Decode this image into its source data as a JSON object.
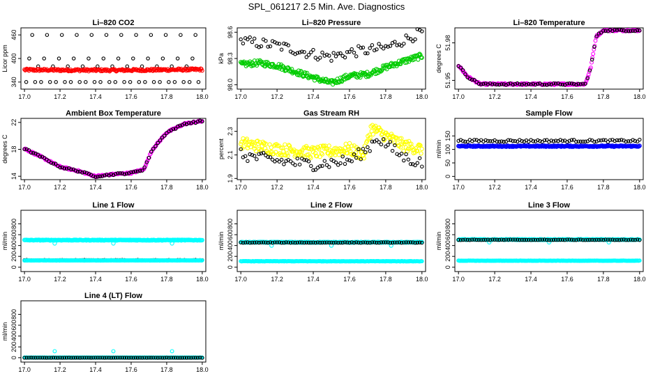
{
  "page_title": "SPL_061217  2.5 Min. Ave. Diagnostics",
  "colors": {
    "black": "#000000",
    "red": "#ff0000",
    "green": "#00cc00",
    "magenta": "#ff00ff",
    "yellow": "#ffff00",
    "blue": "#0000ff",
    "cyan": "#00ffff"
  },
  "chart_data": [
    {
      "type": "scatter",
      "title": "Li–820 CO2",
      "xlabel": "",
      "ylabel": "Licor ppm",
      "xlim": [
        16.98,
        18.02
      ],
      "ylim": [
        322,
        478
      ],
      "xticks": [
        "17.0",
        "17.2",
        "17.4",
        "17.6",
        "17.8",
        "18.0"
      ],
      "xtick_values": [
        17.0,
        17.2,
        17.4,
        17.6,
        17.8,
        18.0
      ],
      "yticks": [
        "340",
        "400",
        "460"
      ],
      "ytick_values": [
        340,
        400,
        460
      ],
      "series": [
        {
          "name": "black scatter",
          "color": "black",
          "size": 2.2,
          "kind": "band_cycle",
          "cycle": [
            340,
            400,
            460,
            340,
            380
          ],
          "x_range": [
            17.01,
            17.99
          ]
        },
        {
          "name": "red scatter",
          "color": "red",
          "size": 2.4,
          "kind": "noisy_curve",
          "points": [
            [
              17.0,
              371
            ],
            [
              17.5,
              370
            ],
            [
              18.0,
              372
            ]
          ],
          "noise": 3
        }
      ]
    },
    {
      "type": "scatter",
      "title": "Li–820 Pressure",
      "xlabel": "",
      "ylabel": "kPa",
      "xlim": [
        16.98,
        18.02
      ],
      "ylim": [
        97.95,
        98.65
      ],
      "xticks": [
        "17.0",
        "17.2",
        "17.4",
        "17.6",
        "17.8",
        "18.0"
      ],
      "xtick_values": [
        17.0,
        17.2,
        17.4,
        17.6,
        17.8,
        18.0
      ],
      "yticks": [
        "98.0",
        "98.3",
        "98.6"
      ],
      "ytick_values": [
        98.0,
        98.3,
        98.6
      ],
      "series": [
        {
          "name": "black scatter",
          "color": "black",
          "size": 2.2,
          "kind": "noisy_curve",
          "points": [
            [
              17.0,
              98.5
            ],
            [
              17.2,
              98.45
            ],
            [
              17.4,
              98.35
            ],
            [
              17.5,
              98.32
            ],
            [
              17.6,
              98.37
            ],
            [
              17.8,
              98.42
            ],
            [
              18.0,
              98.6
            ]
          ],
          "noise": 0.06
        },
        {
          "name": "green scatter",
          "color": "green",
          "size": 2.6,
          "kind": "noisy_curve",
          "points": [
            [
              17.0,
              98.23
            ],
            [
              17.1,
              98.25
            ],
            [
              17.2,
              98.22
            ],
            [
              17.3,
              98.15
            ],
            [
              17.45,
              98.05
            ],
            [
              17.5,
              98.02
            ],
            [
              17.6,
              98.1
            ],
            [
              17.7,
              98.12
            ],
            [
              17.8,
              98.2
            ],
            [
              17.9,
              98.27
            ],
            [
              18.0,
              98.33
            ]
          ],
          "noise": 0.03
        }
      ]
    },
    {
      "type": "scatter",
      "title": "Li–820 Temperature",
      "xlabel": "",
      "ylabel": "degrees C",
      "xlim": [
        16.98,
        18.02
      ],
      "ylim": [
        51.943,
        51.992
      ],
      "xticks": [
        "17.0",
        "17.2",
        "17.4",
        "17.6",
        "17.8",
        "18.0"
      ],
      "xtick_values": [
        17.0,
        17.2,
        17.4,
        17.6,
        17.8,
        18.0
      ],
      "yticks": [
        "51.95",
        "51.98"
      ],
      "ytick_values": [
        51.95,
        51.98
      ],
      "series": [
        {
          "name": "magenta scatter",
          "color": "magenta",
          "size": 2.4,
          "kind": "noisy_curve",
          "points": [
            [
              17.0,
              51.962
            ],
            [
              17.05,
              51.953
            ],
            [
              17.12,
              51.947
            ],
            [
              17.7,
              51.947
            ],
            [
              17.73,
              51.96
            ],
            [
              17.76,
              51.985
            ],
            [
              17.8,
              51.99
            ],
            [
              18.0,
              51.99
            ]
          ],
          "noise": 0.0007
        },
        {
          "name": "black scatter",
          "color": "black",
          "size": 2.2,
          "kind": "noisy_curve",
          "points": [
            [
              17.0,
              51.962
            ],
            [
              17.05,
              51.953
            ],
            [
              17.12,
              51.947
            ],
            [
              17.7,
              51.947
            ],
            [
              17.73,
              51.96
            ],
            [
              17.76,
              51.985
            ],
            [
              17.8,
              51.99
            ],
            [
              18.0,
              51.99
            ]
          ],
          "noise": 0.0007
        }
      ]
    },
    {
      "type": "scatter",
      "title": "Ambient Box Temperature",
      "xlabel": "",
      "ylabel": "degrees C",
      "xlim": [
        16.98,
        18.02
      ],
      "ylim": [
        13.5,
        22.6
      ],
      "xticks": [
        "17.0",
        "17.2",
        "17.4",
        "17.6",
        "17.8",
        "18.0"
      ],
      "xtick_values": [
        17.0,
        17.2,
        17.4,
        17.6,
        17.8,
        18.0
      ],
      "yticks": [
        "14",
        "18",
        "22"
      ],
      "ytick_values": [
        14,
        18,
        22
      ],
      "series": [
        {
          "name": "magenta scatter",
          "color": "magenta",
          "size": 2.4,
          "kind": "noisy_curve",
          "points": [
            [
              17.0,
              18.1
            ],
            [
              17.1,
              16.8
            ],
            [
              17.2,
              15.4
            ],
            [
              17.3,
              14.8
            ],
            [
              17.4,
              14.0
            ],
            [
              17.5,
              14.3
            ],
            [
              17.6,
              14.5
            ],
            [
              17.67,
              15.0
            ],
            [
              17.72,
              18.0
            ],
            [
              17.8,
              20.5
            ],
            [
              17.9,
              21.8
            ],
            [
              18.0,
              22.2
            ]
          ],
          "noise": 0.12
        },
        {
          "name": "black scatter",
          "color": "black",
          "size": 2.2,
          "kind": "noisy_curve",
          "points": [
            [
              17.0,
              18.1
            ],
            [
              17.1,
              16.8
            ],
            [
              17.2,
              15.4
            ],
            [
              17.3,
              14.8
            ],
            [
              17.4,
              14.0
            ],
            [
              17.5,
              14.3
            ],
            [
              17.6,
              14.5
            ],
            [
              17.67,
              15.0
            ],
            [
              17.72,
              18.0
            ],
            [
              17.8,
              20.5
            ],
            [
              17.9,
              21.8
            ],
            [
              18.0,
              22.2
            ]
          ],
          "noise": 0.12
        }
      ]
    },
    {
      "type": "scatter",
      "title": "Gas Stream RH",
      "xlabel": "",
      "ylabel": "percent",
      "xlim": [
        16.98,
        18.02
      ],
      "ylim": [
        1.89,
        2.41
      ],
      "xticks": [
        "17.0",
        "17.2",
        "17.4",
        "17.6",
        "17.8",
        "18.0"
      ],
      "xtick_values": [
        17.0,
        17.2,
        17.4,
        17.6,
        17.8,
        18.0
      ],
      "yticks": [
        "1.9",
        "2.1",
        "2.3"
      ],
      "ytick_values": [
        1.9,
        2.1,
        2.3
      ],
      "series": [
        {
          "name": "yellow scatter",
          "color": "yellow",
          "size": 2.6,
          "kind": "noisy_curve",
          "points": [
            [
              17.0,
              2.2
            ],
            [
              17.2,
              2.15
            ],
            [
              17.4,
              2.12
            ],
            [
              17.6,
              2.15
            ],
            [
              17.68,
              2.1
            ],
            [
              17.72,
              2.33
            ],
            [
              17.78,
              2.28
            ],
            [
              17.9,
              2.18
            ],
            [
              18.0,
              2.15
            ]
          ],
          "noise": 0.05
        },
        {
          "name": "black scatter",
          "color": "black",
          "size": 2.2,
          "kind": "noisy_curve",
          "points": [
            [
              17.0,
              2.1
            ],
            [
              17.2,
              2.05
            ],
            [
              17.4,
              2.02
            ],
            [
              17.6,
              2.05
            ],
            [
              17.7,
              2.15
            ],
            [
              17.75,
              2.25
            ],
            [
              17.9,
              2.08
            ],
            [
              18.0,
              2.03
            ]
          ],
          "noise": 0.05
        }
      ]
    },
    {
      "type": "scatter",
      "title": "Sample Flow",
      "xlabel": "",
      "ylabel": "ml/min",
      "xlim": [
        16.98,
        18.02
      ],
      "ylim": [
        -12,
        215
      ],
      "xticks": [
        "17.0",
        "17.2",
        "17.4",
        "17.6",
        "17.8",
        "18.0"
      ],
      "xtick_values": [
        17.0,
        17.2,
        17.4,
        17.6,
        17.8,
        18.0
      ],
      "yticks": [
        "0",
        "50",
        "100",
        "150"
      ],
      "ytick_values": [
        0,
        50,
        100,
        150
      ],
      "series": [
        {
          "name": "black scatter",
          "color": "black",
          "size": 2.2,
          "kind": "noisy_curve",
          "points": [
            [
              17.0,
              132
            ],
            [
              18.0,
              132
            ]
          ],
          "noise": 4
        },
        {
          "name": "blue scatter",
          "color": "blue",
          "size": 2.6,
          "kind": "noisy_curve",
          "points": [
            [
              17.0,
              112
            ],
            [
              18.0,
              112
            ]
          ],
          "noise": 2
        }
      ]
    },
    {
      "type": "scatter",
      "title": "Line 1 Flow",
      "xlabel": "",
      "ylabel": "ml/min",
      "xlim": [
        16.98,
        18.02
      ],
      "ylim": [
        -80,
        1050
      ],
      "xticks": [
        "17.0",
        "17.2",
        "17.4",
        "17.6",
        "17.8",
        "18.0"
      ],
      "xtick_values": [
        17.0,
        17.2,
        17.4,
        17.6,
        17.8,
        18.0
      ],
      "yticks": [
        "0",
        "200",
        "400",
        "600",
        "800"
      ],
      "ytick_values": [
        0,
        200,
        400,
        600,
        800
      ],
      "series": [
        {
          "name": "cyan scatter",
          "color": "cyan",
          "size": 2.6,
          "kind": "noisy_curve",
          "points": [
            [
              17.0,
              500
            ],
            [
              18.0,
              500
            ]
          ],
          "noise": 6,
          "outliers": [
            [
              17.17,
              440
            ],
            [
              17.5,
              440
            ],
            [
              17.83,
              440
            ]
          ]
        },
        {
          "name": "black scatter",
          "color": "black",
          "size": 2.2,
          "kind": "noisy_curve",
          "points": [
            [
              17.0,
              130
            ],
            [
              18.0,
              130
            ]
          ],
          "noise": 4
        },
        {
          "name": "cyan scatter (low)",
          "color": "cyan",
          "size": 2.4,
          "kind": "noisy_curve",
          "points": [
            [
              17.0,
              125
            ],
            [
              18.0,
              125
            ]
          ],
          "noise": 3
        }
      ]
    },
    {
      "type": "scatter",
      "title": "Line 2 Flow",
      "xlabel": "",
      "ylabel": "ml/min",
      "xlim": [
        16.98,
        18.02
      ],
      "ylim": [
        -80,
        1050
      ],
      "xticks": [
        "17.0",
        "17.2",
        "17.4",
        "17.6",
        "17.8",
        "18.0"
      ],
      "xtick_values": [
        17.0,
        17.2,
        17.4,
        17.6,
        17.8,
        18.0
      ],
      "yticks": [
        "0",
        "200",
        "400",
        "600",
        "800"
      ],
      "ytick_values": [
        0,
        200,
        400,
        600,
        800
      ],
      "series": [
        {
          "name": "cyan scatter",
          "color": "cyan",
          "size": 2.6,
          "kind": "noisy_curve",
          "points": [
            [
              17.0,
              460
            ],
            [
              18.0,
              460
            ]
          ],
          "noise": 6,
          "outliers": [
            [
              17.17,
              400
            ],
            [
              17.5,
              400
            ],
            [
              17.83,
              400
            ]
          ]
        },
        {
          "name": "black scatter",
          "color": "black",
          "size": 2.2,
          "kind": "noisy_curve",
          "points": [
            [
              17.0,
              455
            ],
            [
              18.0,
              455
            ]
          ],
          "noise": 5
        },
        {
          "name": "cyan scatter (low)",
          "color": "cyan",
          "size": 2.4,
          "kind": "noisy_curve",
          "points": [
            [
              17.0,
              110
            ],
            [
              18.0,
              110
            ]
          ],
          "noise": 3
        }
      ]
    },
    {
      "type": "scatter",
      "title": "Line 3 Flow",
      "xlabel": "",
      "ylabel": "ml/min",
      "xlim": [
        16.98,
        18.02
      ],
      "ylim": [
        -80,
        1050
      ],
      "xticks": [
        "17.0",
        "17.2",
        "17.4",
        "17.6",
        "17.8",
        "18.0"
      ],
      "xtick_values": [
        17.0,
        17.2,
        17.4,
        17.6,
        17.8,
        18.0
      ],
      "yticks": [
        "0",
        "200",
        "400",
        "600",
        "800"
      ],
      "ytick_values": [
        0,
        200,
        400,
        600,
        800
      ],
      "series": [
        {
          "name": "cyan scatter",
          "color": "cyan",
          "size": 2.6,
          "kind": "noisy_curve",
          "points": [
            [
              17.0,
              510
            ],
            [
              18.0,
              510
            ]
          ],
          "noise": 6,
          "outliers": [
            [
              17.17,
              460
            ],
            [
              17.5,
              460
            ],
            [
              17.83,
              460
            ]
          ]
        },
        {
          "name": "black scatter",
          "color": "black",
          "size": 2.2,
          "kind": "noisy_curve",
          "points": [
            [
              17.0,
              505
            ],
            [
              18.0,
              505
            ]
          ],
          "noise": 5
        },
        {
          "name": "cyan scatter (low)",
          "color": "cyan",
          "size": 2.4,
          "kind": "noisy_curve",
          "points": [
            [
              17.0,
              120
            ],
            [
              18.0,
              120
            ]
          ],
          "noise": 3
        }
      ]
    },
    {
      "type": "scatter",
      "title": "Line 4 (LT) Flow",
      "xlabel": "",
      "ylabel": "ml/min",
      "xlim": [
        16.98,
        18.02
      ],
      "ylim": [
        -80,
        1050
      ],
      "xticks": [
        "17.0",
        "17.2",
        "17.4",
        "17.6",
        "17.8",
        "18.0"
      ],
      "xtick_values": [
        17.0,
        17.2,
        17.4,
        17.6,
        17.8,
        18.0
      ],
      "yticks": [
        "0",
        "200",
        "400",
        "600",
        "800"
      ],
      "ytick_values": [
        0,
        200,
        400,
        600,
        800
      ],
      "series": [
        {
          "name": "cyan scatter",
          "color": "cyan",
          "size": 2.4,
          "kind": "noisy_curve",
          "points": [
            [
              17.0,
              3
            ],
            [
              18.0,
              3
            ]
          ],
          "noise": 2,
          "outliers": [
            [
              17.17,
              120
            ],
            [
              17.5,
              120
            ],
            [
              17.83,
              120
            ]
          ]
        },
        {
          "name": "black scatter",
          "color": "black",
          "size": 2.2,
          "kind": "noisy_curve",
          "points": [
            [
              17.0,
              0
            ],
            [
              18.0,
              0
            ]
          ],
          "noise": 2
        }
      ]
    }
  ]
}
